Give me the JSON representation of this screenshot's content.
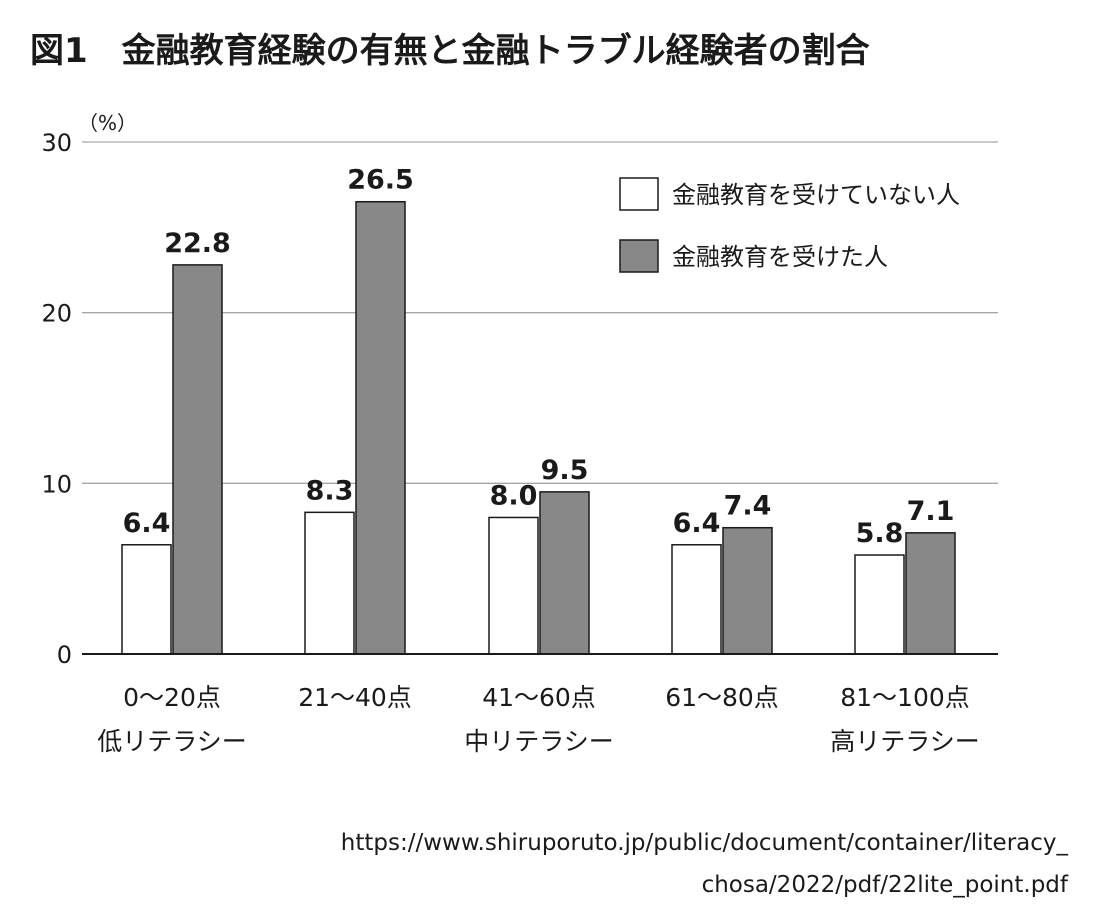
{
  "chart_data": {
    "type": "bar",
    "title": "図1　金融教育経験の有無と金融トラブル経験者の割合",
    "ylabel": "（%）",
    "xlabel": "",
    "ylim": [
      0,
      30
    ],
    "yticks": [
      0,
      10,
      20,
      30
    ],
    "grid": true,
    "legend_position": "top-right",
    "categories": [
      [
        "0～20点",
        "低リテラシー"
      ],
      [
        "21～40点"
      ],
      [
        "41～60点",
        "中リテラシー"
      ],
      [
        "61～80点"
      ],
      [
        "81～100点",
        "高リテラシー"
      ]
    ],
    "series": [
      {
        "name": "金融教育を受けていない人",
        "color": "#ffffff",
        "values": [
          6.4,
          8.3,
          8.0,
          6.4,
          5.8
        ],
        "labels": [
          "6.4",
          "8.3",
          "8.0",
          "6.4",
          "5.8"
        ]
      },
      {
        "name": "金融教育を受けた人",
        "color": "#888888",
        "values": [
          22.8,
          26.5,
          9.5,
          7.4,
          7.1
        ],
        "labels": [
          "22.8",
          "26.5",
          "9.5",
          "7.4",
          "7.1"
        ]
      }
    ]
  },
  "source": [
    "https://www.shiruporuto.jp/public/document/container/literacy_",
    "chosa/2022/pdf/22lite_point.pdf"
  ]
}
